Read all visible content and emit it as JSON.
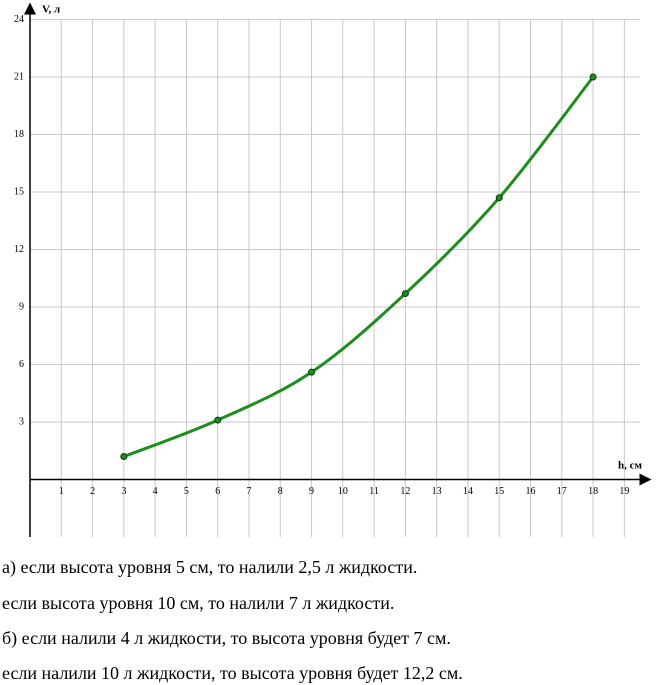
{
  "chart_data": {
    "type": "line",
    "x_label": "h, см",
    "y_label": "V, л",
    "x": [
      3,
      6,
      9,
      12,
      15,
      18
    ],
    "values": [
      1.2,
      3.1,
      5.6,
      9.7,
      14.7,
      21
    ],
    "color": "#1e8c1e",
    "xlim": [
      0,
      19.5
    ],
    "ylim": [
      -3,
      24
    ],
    "xticks": [
      1,
      2,
      3,
      4,
      5,
      6,
      7,
      8,
      9,
      10,
      11,
      12,
      13,
      14,
      15,
      16,
      17,
      18,
      19
    ],
    "yticks": [
      3,
      6,
      9,
      12,
      15,
      18,
      21,
      24
    ],
    "grid": true
  },
  "text": {
    "lines": [
      "а) если высота уровня 5 см, то налили 2,5 л жидкости.",
      "если высота уровня 10 см, то налили 7 л жидкости.",
      "б) если налили 4 л жидкости, то высота уровня будет 7 см.",
      "если налили 10 л жидкости, то высота уровня будет 12,2 см."
    ]
  }
}
